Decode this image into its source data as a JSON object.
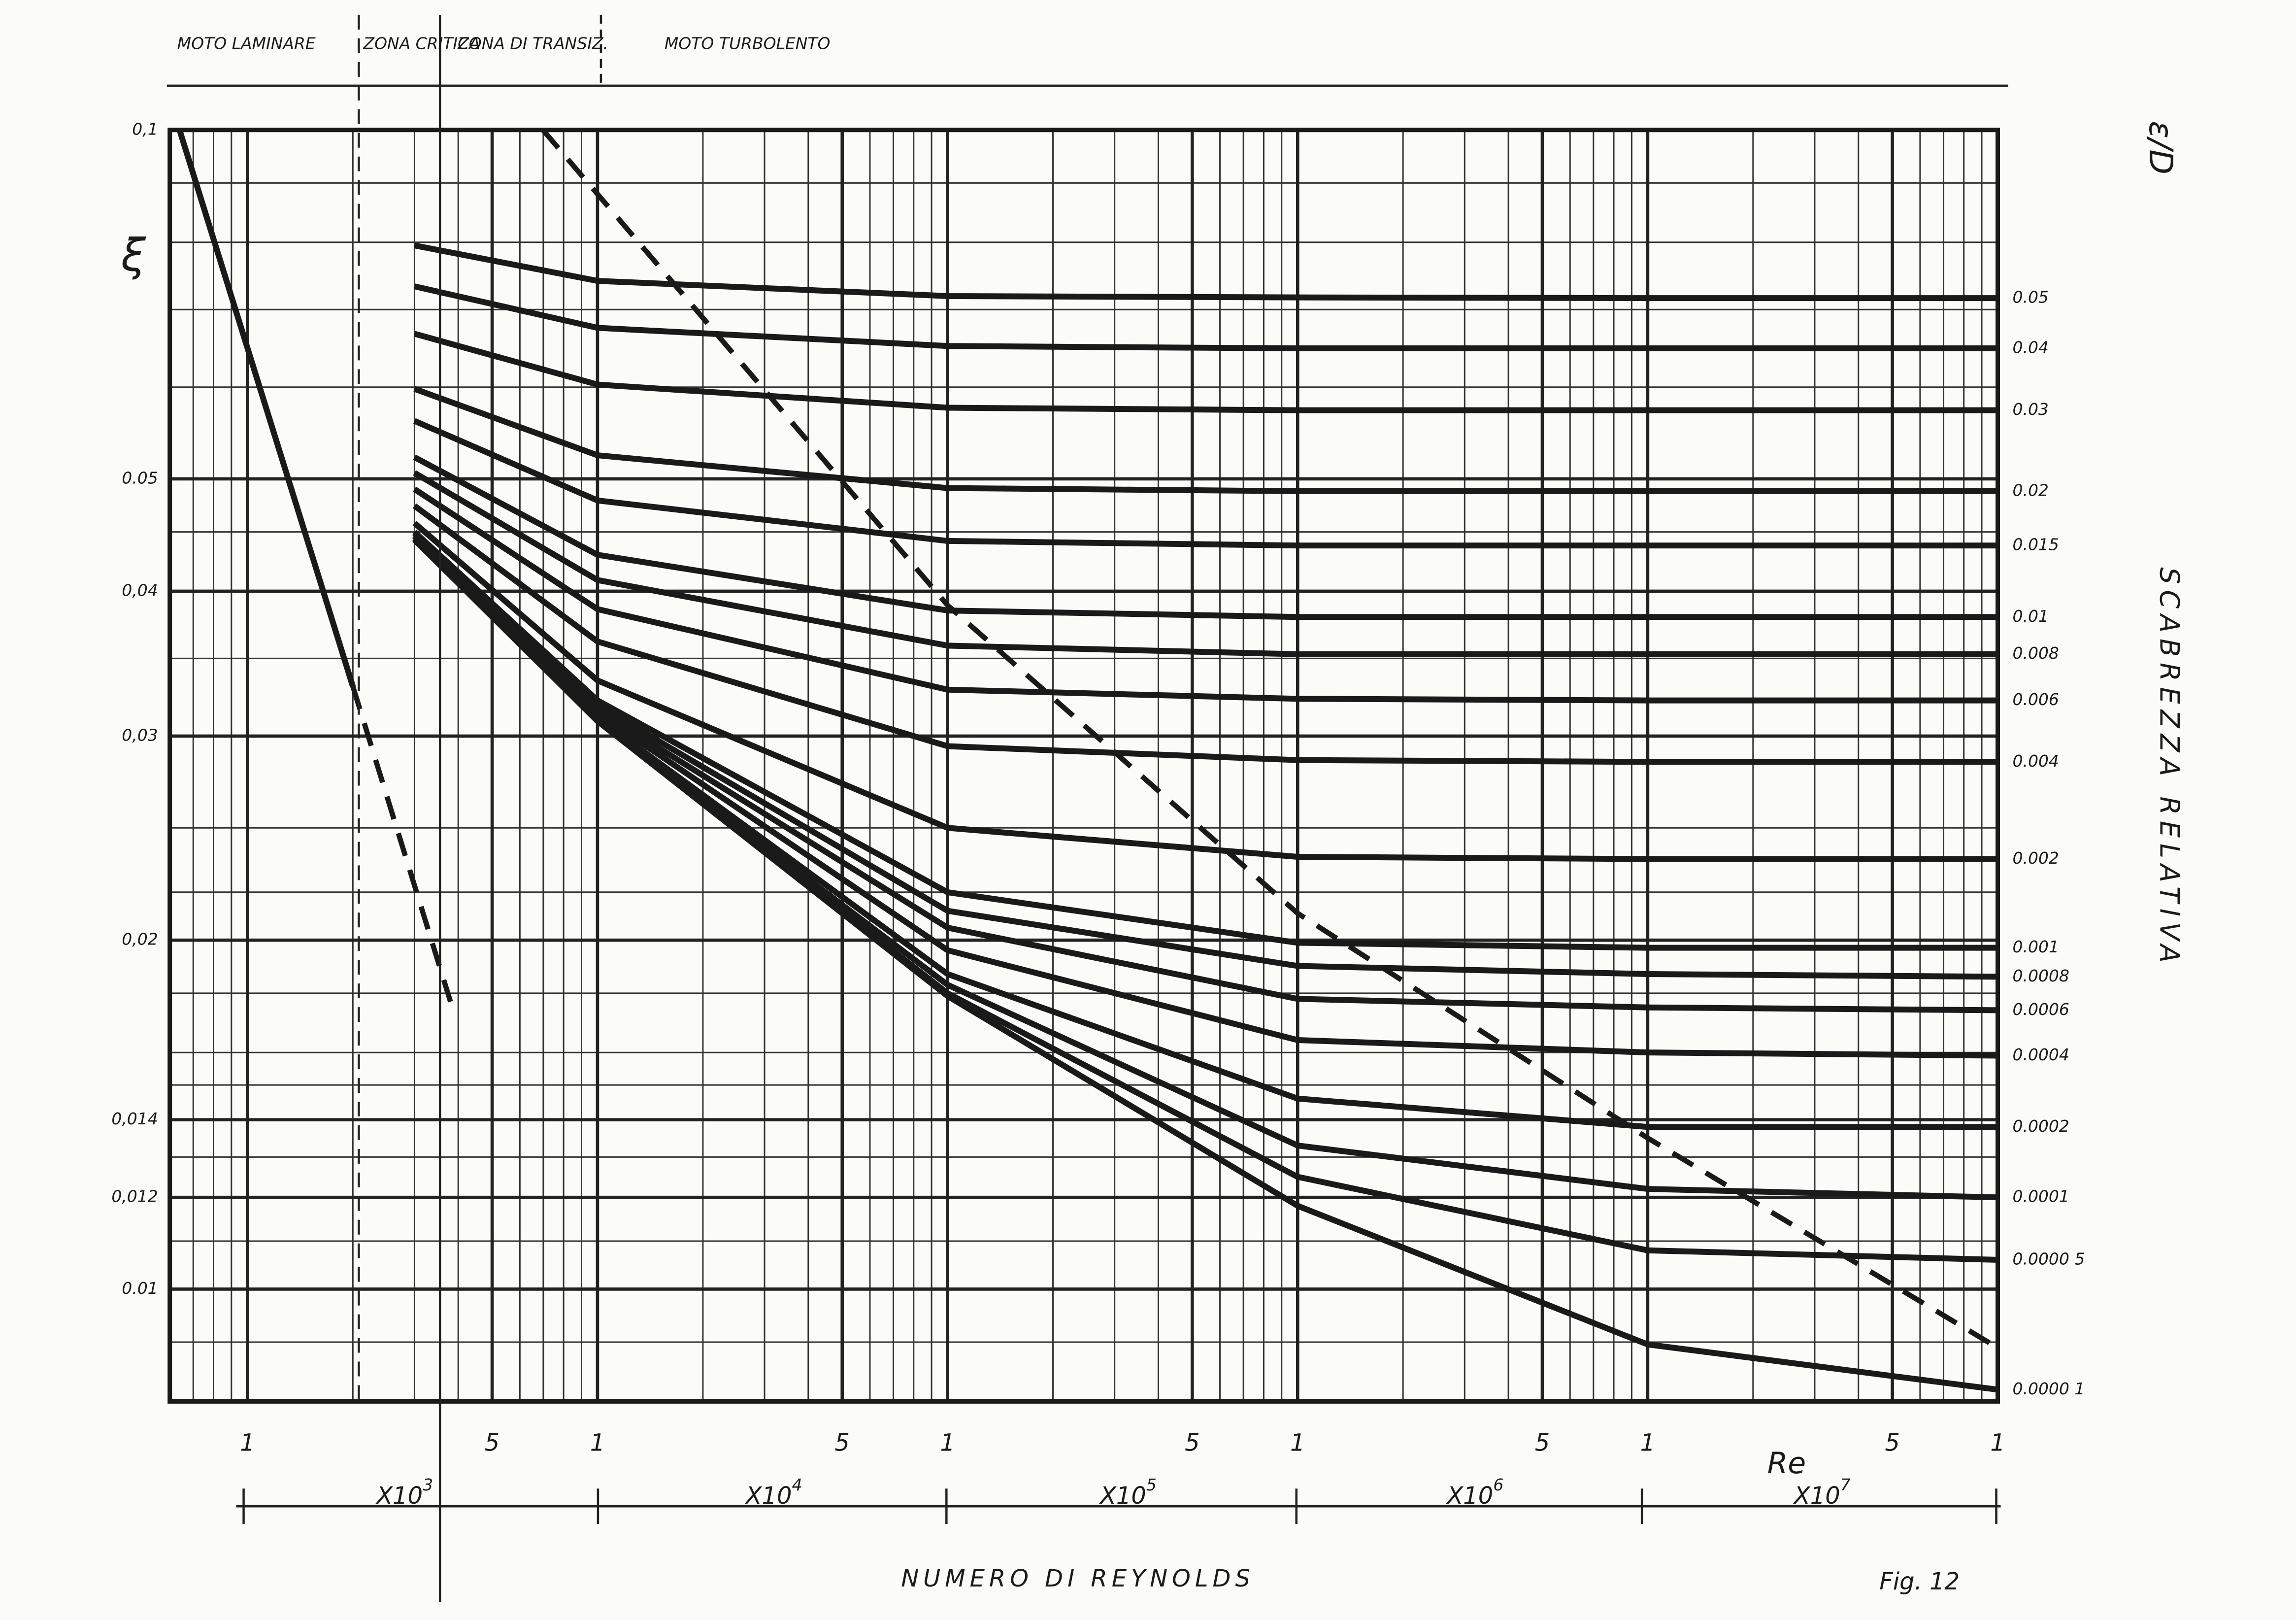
{
  "chart_data": {
    "type": "line",
    "xlabel": "NUMERO DI REYNOLDS",
    "xlabel_symbol": "Re",
    "ylabel": "ξ",
    "y2label": "SCABREZZA RELATIVA",
    "y2label_symbol": "ε/D",
    "figure_label": "Fig. 12",
    "zones": [
      "MOTO LAMINARE",
      "ZONA CRITICA",
      "ZONA DI TRANSIZ.",
      "MOTO TURBOLENTO"
    ],
    "x_multipliers": [
      {
        "text": "X10",
        "exp": "3"
      },
      {
        "text": "X10",
        "exp": "4"
      },
      {
        "text": "X10",
        "exp": "5"
      },
      {
        "text": "X10",
        "exp": "6"
      },
      {
        "text": "X10",
        "exp": "7"
      }
    ],
    "log_x": true,
    "log_y": true,
    "grid": true,
    "xlim": [
      600,
      100000000
    ],
    "ylim": [
      0.008,
      0.1
    ],
    "xticks": [
      {
        "value": 1000,
        "label": "1"
      },
      {
        "value": 5000,
        "label": "5"
      },
      {
        "value": 10000,
        "label": "1"
      },
      {
        "value": 50000,
        "label": "5"
      },
      {
        "value": 100000,
        "label": "1"
      },
      {
        "value": 500000,
        "label": "5"
      },
      {
        "value": 1000000,
        "label": "1"
      },
      {
        "value": 5000000,
        "label": "5"
      },
      {
        "value": 10000000,
        "label": "1"
      },
      {
        "value": 50000000,
        "label": "5"
      },
      {
        "value": 100000000,
        "label": "1"
      }
    ],
    "yticks": [
      {
        "value": 0.1,
        "label": "0,1"
      },
      0.05,
      {
        "value": 0.04,
        "label": "0,04"
      },
      {
        "value": 0.03,
        "label": "0,03"
      },
      {
        "value": 0.02,
        "label": "0,02"
      },
      {
        "value": 0.014,
        "label": "0,014"
      },
      {
        "value": 0.012,
        "label": "0,012"
      },
      0.01
    ],
    "xminor": [
      600,
      700,
      800,
      900,
      2000,
      3000,
      4000,
      6000,
      7000,
      8000,
      9000,
      20000,
      30000,
      40000,
      60000,
      70000,
      80000,
      90000,
      200000,
      300000,
      400000,
      600000,
      700000,
      800000,
      900000,
      2000000,
      3000000,
      4000000,
      6000000,
      7000000,
      8000000,
      9000000,
      20000000,
      30000000,
      40000000,
      60000000,
      70000000,
      80000000,
      90000000
    ],
    "yminor": [
      0.008,
      0.009,
      0.011,
      0.013,
      0.015,
      0.016,
      0.018,
      0.022,
      0.025,
      0.035,
      0.045,
      0.06,
      0.07,
      0.08,
      0.09
    ],
    "x": [
      3000,
      10000,
      100000,
      1000000,
      10000000,
      100000000
    ],
    "series": [
      {
        "name": "0.05",
        "color": "#1a1a1a",
        "style": "solid",
        "values": [
          0.0795,
          0.0741,
          0.0719,
          0.0717,
          0.0716,
          0.0716
        ]
      },
      {
        "name": "0.04",
        "color": "#1a1a1a",
        "style": "solid",
        "values": [
          0.0733,
          0.0675,
          0.0651,
          0.0648,
          0.0648,
          0.0648
        ]
      },
      {
        "name": "0.03",
        "color": "#1a1a1a",
        "style": "solid",
        "values": [
          0.0667,
          0.0603,
          0.0576,
          0.0573,
          0.0573,
          0.0573
        ]
      },
      {
        "name": "0.02",
        "color": "#1a1a1a",
        "style": "solid",
        "values": [
          0.0598,
          0.0524,
          0.0491,
          0.0488,
          0.0488,
          0.0488
        ]
      },
      {
        "name": "0.015",
        "color": "#1a1a1a",
        "style": "solid",
        "values": [
          0.0561,
          0.0479,
          0.0442,
          0.0438,
          0.0438,
          0.0438
        ]
      },
      {
        "name": "0.01",
        "color": "#1a1a1a",
        "style": "solid",
        "values": [
          0.0522,
          0.043,
          0.0385,
          0.038,
          0.038,
          0.038
        ]
      },
      {
        "name": "0.008",
        "color": "#1a1a1a",
        "style": "solid",
        "values": [
          0.0506,
          0.0409,
          0.0359,
          0.0353,
          0.0353,
          0.0353
        ]
      },
      {
        "name": "0.006",
        "color": "#1a1a1a",
        "style": "solid",
        "values": [
          0.049,
          0.0386,
          0.0329,
          0.0323,
          0.0322,
          0.0322
        ]
      },
      {
        "name": "0.004",
        "color": "#1a1a1a",
        "style": "solid",
        "values": [
          0.0474,
          0.0362,
          0.0294,
          0.0286,
          0.0285,
          0.0285
        ]
      },
      {
        "name": "0.002",
        "color": "#1a1a1a",
        "style": "solid",
        "values": [
          0.0458,
          0.0335,
          0.025,
          0.0236,
          0.0235,
          0.0235
        ]
      },
      {
        "name": "0.001",
        "color": "#1a1a1a",
        "style": "solid",
        "values": [
          0.045,
          0.0322,
          0.022,
          0.0199,
          0.0197,
          0.0197
        ]
      },
      {
        "name": "0.0008",
        "color": "#1a1a1a",
        "style": "solid",
        "values": [
          0.0449,
          0.0319,
          0.0212,
          0.019,
          0.0187,
          0.0186
        ]
      },
      {
        "name": "0.0006",
        "color": "#1a1a1a",
        "style": "solid",
        "values": [
          0.0447,
          0.0316,
          0.0205,
          0.0178,
          0.0175,
          0.0174
        ]
      },
      {
        "name": "0.0004",
        "color": "#1a1a1a",
        "style": "solid",
        "values": [
          0.0446,
          0.0314,
          0.0196,
          0.0164,
          0.016,
          0.0159
        ]
      },
      {
        "name": "0.0002",
        "color": "#1a1a1a",
        "style": "solid",
        "values": [
          0.0444,
          0.0311,
          0.0187,
          0.0146,
          0.0138,
          0.0138
        ]
      },
      {
        "name": "0.0001",
        "color": "#1a1a1a",
        "style": "solid",
        "values": [
          0.0444,
          0.031,
          0.0183,
          0.0133,
          0.0122,
          0.012
        ]
      },
      {
        "name": "0.0000 5",
        "color": "#1a1a1a",
        "style": "solid",
        "values": [
          0.0443,
          0.0309,
          0.018,
          0.0125,
          0.0108,
          0.0106
        ]
      },
      {
        "name": "0.0000 1",
        "color": "#1a1a1a",
        "style": "solid",
        "values": [
          0.0443,
          0.0309,
          0.0179,
          0.0118,
          0.00896,
          0.00819
        ]
      },
      {
        "color": "#1a1a1a",
        "style": "solid",
        "x": [
          640,
          2000
        ],
        "values": [
          0.1,
          0.0331
        ]
      },
      {
        "color": "#1a1a1a",
        "style": "dashed",
        "x": [
          2000,
          3800
        ],
        "values": [
          0.0331,
          0.0177
        ]
      },
      {
        "color": "#1a1a1a",
        "style": "dashed",
        "x": [
          6980,
          100000,
          1000000,
          10000000,
          100000000
        ],
        "values": [
          0.1,
          0.0389,
          0.0211,
          0.0135,
          0.0089
        ]
      }
    ]
  }
}
